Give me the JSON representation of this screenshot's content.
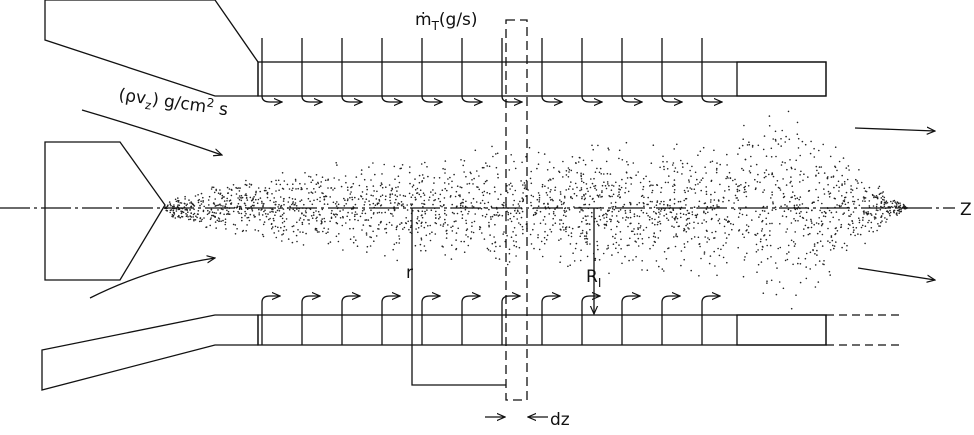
{
  "labels": {
    "mass_flow": {
      "symbol": "ṁ",
      "sub": "T",
      "unit": "(g/s)"
    },
    "flux": {
      "open": "(ρv",
      "sub": "z",
      "unit": ") g/cm",
      "sup": "2",
      "tail": " s"
    },
    "axis": "Z",
    "radius": "r",
    "liner_radius": {
      "symbol": "R",
      "sub": "I"
    },
    "slice": "dz"
  }
}
